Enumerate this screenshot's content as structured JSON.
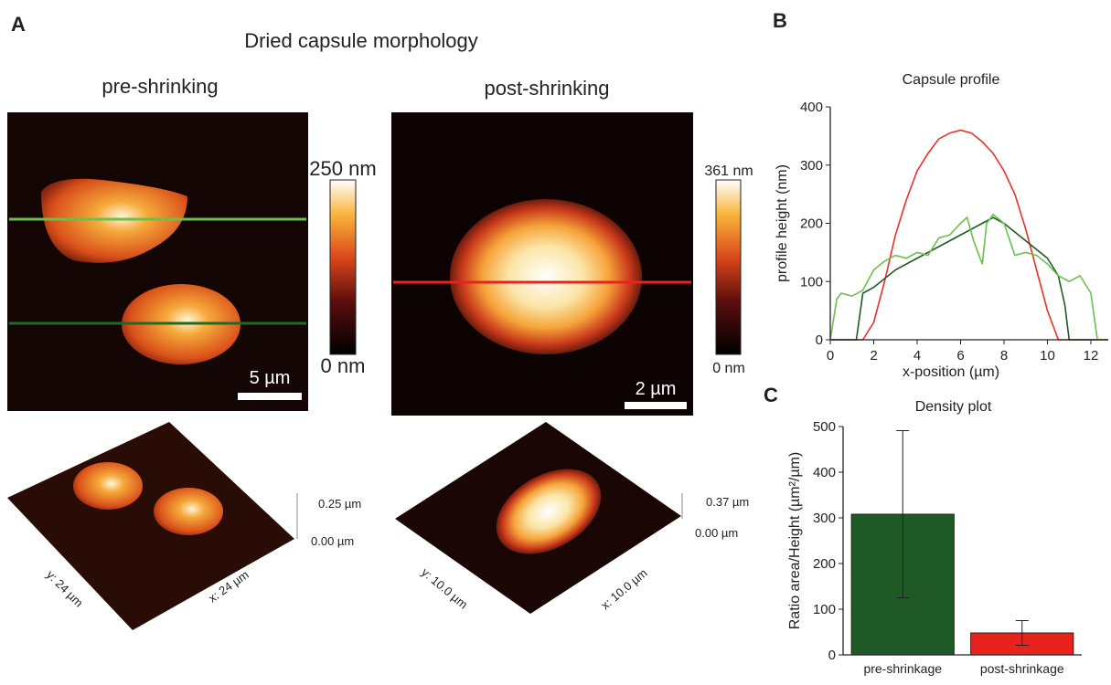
{
  "panel_labels": [
    "A",
    "B",
    "C"
  ],
  "panel_a": {
    "title": "Dried capsule morphology",
    "pre": {
      "title": "pre-shrinking",
      "scale_max": "250 nm",
      "scale_min": "0 nm",
      "scale_bar": "5 µm",
      "z_max": "0.25 µm",
      "z_min": "0.00 µm",
      "y_axis": "y: 24 µm",
      "x_axis": "x: 24 µm"
    },
    "post": {
      "title": "post-shrinking",
      "scale_max": "361 nm",
      "scale_min": "0 nm",
      "scale_bar": "2 µm",
      "z_max": "0.37 µm",
      "z_min": "0.00 µm",
      "y_axis": "y: 10.0 µm",
      "x_axis": "x: 10.0 µm"
    }
  },
  "chart_data": [
    {
      "type": "line",
      "title": "Capsule profile",
      "x_label": "x-position (µm)",
      "y_label": "profile height (nm)",
      "xlim": [
        0,
        12.8
      ],
      "ylim": [
        0,
        400
      ],
      "xticks": [
        0,
        2,
        4,
        6,
        8,
        10,
        12
      ],
      "yticks": [
        0,
        100,
        200,
        300,
        400
      ],
      "series": [
        {
          "color": "#e8312a",
          "x": [
            0,
            1.5,
            2,
            2.5,
            3,
            3.5,
            4,
            4.5,
            5,
            5.5,
            6,
            6.5,
            7,
            7.5,
            8,
            8.5,
            9,
            9.5,
            10,
            10.5,
            12.8
          ],
          "values": [
            0,
            0,
            30,
            100,
            180,
            240,
            290,
            320,
            345,
            355,
            360,
            355,
            340,
            320,
            290,
            250,
            190,
            120,
            50,
            0,
            0
          ]
        },
        {
          "color": "#1f5a26",
          "x": [
            0,
            1.2,
            1.5,
            2,
            3,
            4,
            5,
            6,
            7,
            7.5,
            8,
            9,
            10,
            10.5,
            10.8,
            11,
            12.8
          ],
          "values": [
            0,
            0,
            80,
            90,
            120,
            140,
            160,
            180,
            200,
            210,
            200,
            170,
            140,
            110,
            60,
            0,
            0
          ]
        },
        {
          "color": "#6cc04a",
          "x": [
            0,
            0.3,
            0.5,
            1,
            1.5,
            2,
            2.5,
            3,
            3.5,
            4,
            4.5,
            5,
            5.5,
            6,
            6.3,
            6.6,
            6.8,
            7,
            7.2,
            7.5,
            8,
            8.5,
            9,
            9.5,
            10,
            10.5,
            11,
            11.5,
            12,
            12.3,
            12.8
          ],
          "values": [
            0,
            70,
            80,
            75,
            85,
            120,
            135,
            145,
            140,
            150,
            145,
            175,
            180,
            200,
            210,
            170,
            150,
            130,
            200,
            215,
            200,
            145,
            150,
            145,
            130,
            110,
            100,
            110,
            80,
            0,
            0
          ]
        }
      ]
    },
    {
      "type": "bar",
      "title": "Density plot",
      "y_label": "Ratio area/Height (µm²/µm)",
      "categories": [
        "pre-shrinkage",
        "post-shrinkage"
      ],
      "values": [
        308,
        48
      ],
      "errors": [
        183,
        27
      ],
      "colors": [
        "#1f5a26",
        "#e8221d"
      ],
      "ylim": [
        0,
        500
      ],
      "yticks": [
        0,
        100,
        200,
        300,
        400,
        500
      ]
    }
  ]
}
